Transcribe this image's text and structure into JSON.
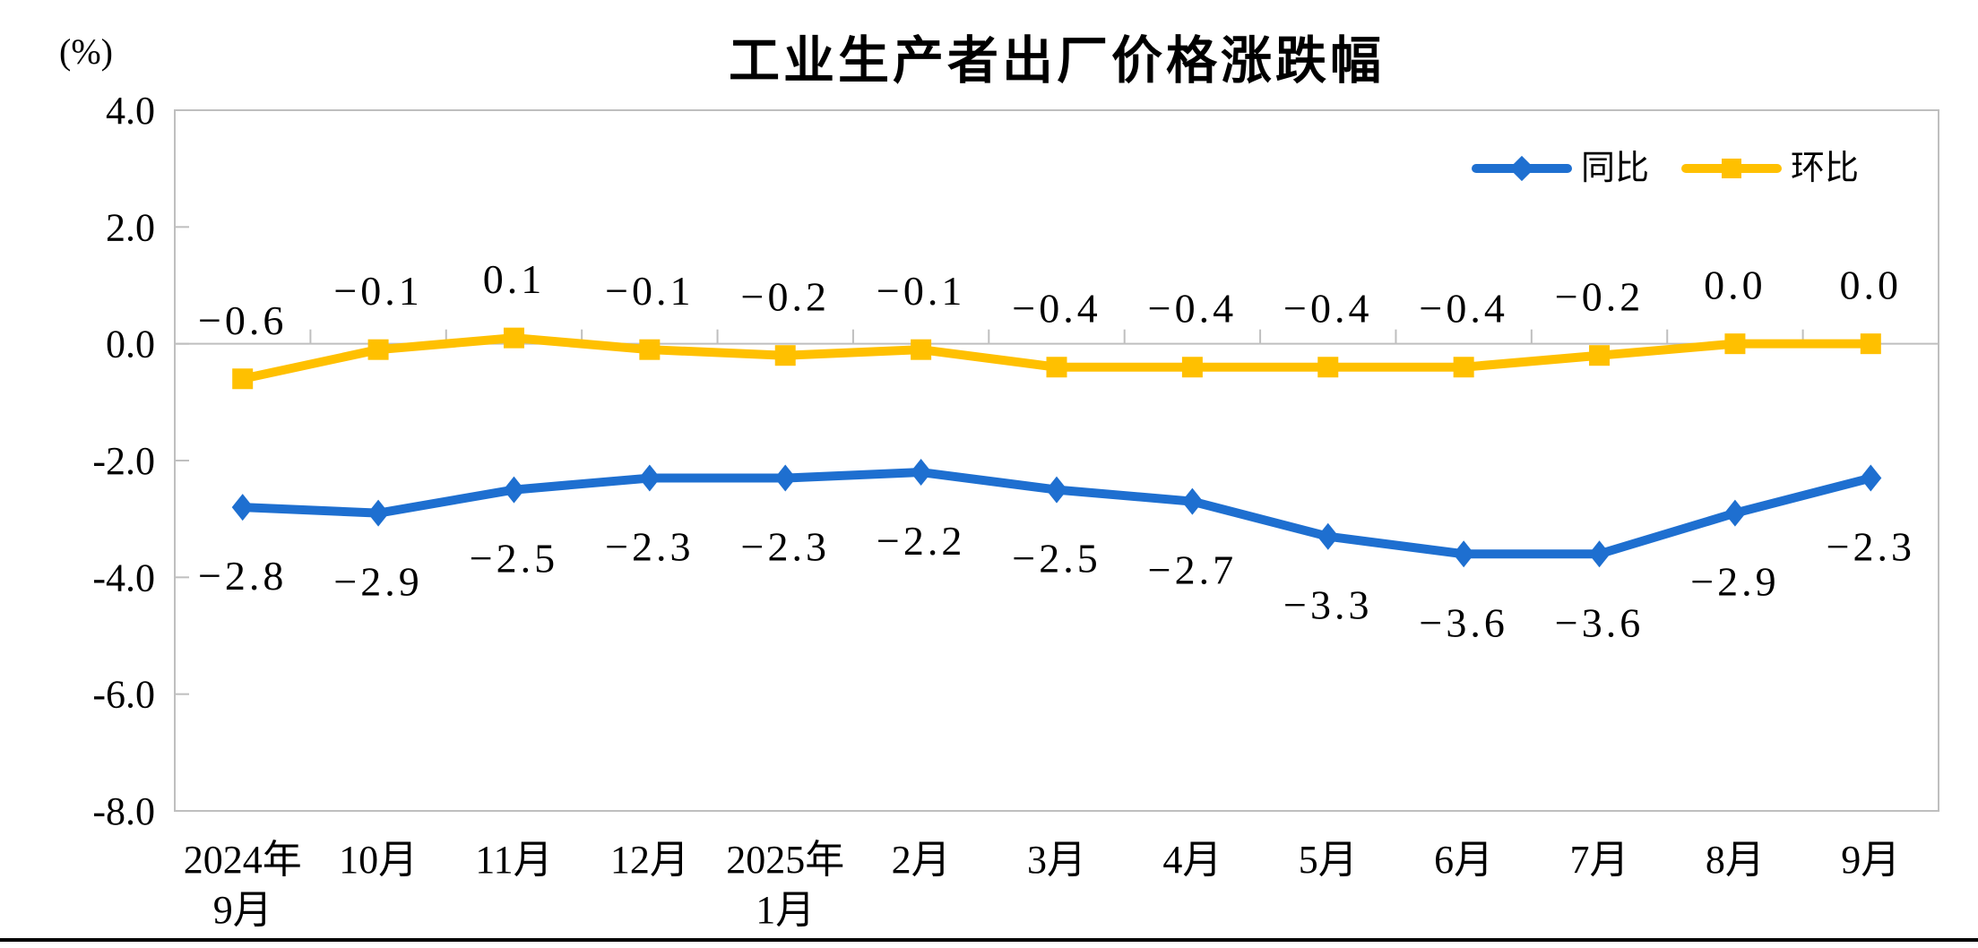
{
  "chart_data": {
    "type": "line",
    "title": "工业生产者出厂价格涨跌幅",
    "unit_label": "(%)",
    "categories": [
      [
        "2024年",
        "9月"
      ],
      [
        "10月"
      ],
      [
        "11月"
      ],
      [
        "12月"
      ],
      [
        "2025年",
        "1月"
      ],
      [
        "2月"
      ],
      [
        "3月"
      ],
      [
        "4月"
      ],
      [
        "5月"
      ],
      [
        "6月"
      ],
      [
        "7月"
      ],
      [
        "8月"
      ],
      [
        "9月"
      ]
    ],
    "series": [
      {
        "name": "同比",
        "color": "#1E6FD0",
        "marker": "diamond",
        "label_position": "below",
        "values": [
          -2.8,
          -2.9,
          -2.5,
          -2.3,
          -2.3,
          -2.2,
          -2.5,
          -2.7,
          -3.3,
          -3.6,
          -3.6,
          -2.9,
          -2.3
        ],
        "labels": [
          "−2.8",
          "−2.9",
          "−2.5",
          "−2.3",
          "−2.3",
          "−2.2",
          "−2.5",
          "−2.7",
          "−3.3",
          "−3.6",
          "−3.6",
          "−2.9",
          "−2.3"
        ]
      },
      {
        "name": "环比",
        "color": "#FFC000",
        "marker": "square",
        "label_position": "above",
        "values": [
          -0.6,
          -0.1,
          0.1,
          -0.1,
          -0.2,
          -0.1,
          -0.4,
          -0.4,
          -0.4,
          -0.4,
          -0.2,
          0.0,
          0.0
        ],
        "labels": [
          "−0.6",
          "−0.1",
          "0.1",
          "−0.1",
          "−0.2",
          "−0.1",
          "−0.4",
          "−0.4",
          "−0.4",
          "−0.4",
          "−0.2",
          "0.0",
          "0.0"
        ]
      }
    ],
    "y_ticks": [
      "4.0",
      "2.0",
      "0.0",
      "-2.0",
      "-4.0",
      "-6.0",
      "-8.0"
    ],
    "ylim": [
      -8,
      4
    ],
    "grid": false,
    "legend_position": "top-right-inside",
    "axis_color": "#BFBFBF"
  }
}
